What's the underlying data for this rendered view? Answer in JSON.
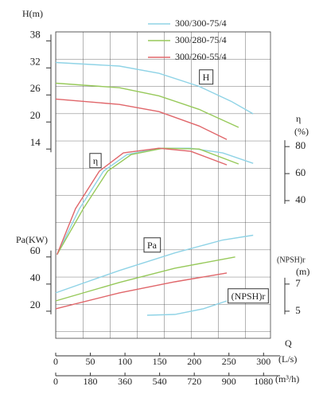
{
  "chart_data": {
    "type": "line",
    "legend": "upper right",
    "xlabel": "Q",
    "xunit": "(L/s)",
    "xlim": [
      0,
      310
    ],
    "xticks": [
      0,
      50,
      100,
      150,
      200,
      250,
      300
    ],
    "x2unit": "(m³/h)",
    "x2lim": [
      0,
      1116
    ],
    "x2ticks": [
      0,
      180,
      360,
      540,
      720,
      900,
      1080
    ],
    "h": {
      "label": "H(m)",
      "ylim": [
        -28,
        40
      ],
      "yticks": [
        14,
        20,
        26,
        32,
        38
      ],
      "annotation": "H"
    },
    "eta": {
      "label": "η",
      "unit": "(%)",
      "ylim": [
        -62,
        165
      ],
      "yticks": [
        40,
        60,
        80
      ],
      "annotation": "η"
    },
    "pa": {
      "label": "Pa(KW)",
      "ylim": [
        0,
        226
      ],
      "yticks": [
        20,
        40,
        60
      ],
      "annotation": "Pa"
    },
    "npsh": {
      "label": "(NPSH)r",
      "unit": "(m)",
      "ylim": [
        3,
        25.6
      ],
      "yticks": [
        5,
        7
      ],
      "annotation": "(NPSH)r",
      "color": "#8fd3e6",
      "x": [
        132,
        172,
        213,
        247
      ],
      "values": [
        4.7,
        4.76,
        5.18,
        5.76
      ]
    },
    "series": [
      {
        "name": "300/300-75/4",
        "color": "#8fd3e6",
        "h": {
          "x": [
            0,
            92,
            149,
            207,
            253,
            285
          ],
          "values": [
            33.2,
            32.4,
            30.8,
            27.9,
            24.6,
            21.8
          ]
        },
        "eta": {
          "x": [
            2,
            34.5,
            69,
            103,
            149,
            195,
            241,
            285
          ],
          "values": [
            0,
            34.1,
            61.8,
            74.1,
            78.8,
            78.8,
            75.3,
            67.6
          ]
        },
        "pa": {
          "x": [
            0,
            92,
            172,
            241,
            285
          ],
          "values": [
            33.5,
            50,
            63,
            72.5,
            76
          ]
        }
      },
      {
        "name": "300/280-75/4",
        "color": "#97c95a",
        "h": {
          "x": [
            0,
            92,
            149,
            207,
            264
          ],
          "values": [
            28.6,
            27.6,
            25.8,
            22.8,
            18.8
          ]
        },
        "eta": {
          "x": [
            2,
            40,
            75,
            109,
            155,
            207,
            264
          ],
          "values": [
            0,
            34.1,
            61.8,
            74.1,
            78.8,
            78.2,
            67.1
          ]
        },
        "pa": {
          "x": [
            0,
            92,
            172,
            259
          ],
          "values": [
            27.6,
            41.2,
            51.7,
            60
          ]
        }
      },
      {
        "name": "300/260-55/4",
        "color": "#e0666a",
        "h": {
          "x": [
            0,
            92,
            149,
            207,
            247
          ],
          "values": [
            25.1,
            23.9,
            22.3,
            19.1,
            16.1
          ]
        },
        "eta": {
          "x": [
            2,
            28.7,
            63,
            97.7,
            149,
            195,
            247
          ],
          "values": [
            0,
            34.1,
            61.8,
            75.3,
            78.8,
            76.5,
            66.5
          ]
        },
        "pa": {
          "x": [
            0,
            92,
            172,
            247
          ],
          "values": [
            21.8,
            33.5,
            41.7,
            48.2
          ]
        }
      }
    ]
  }
}
